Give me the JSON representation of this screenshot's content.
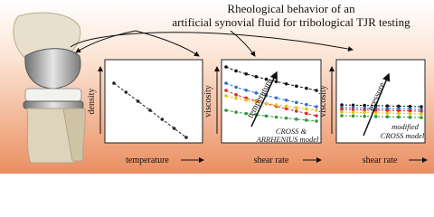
{
  "title_lines": [
    "Rheological behavior of an",
    "artificial synovial fluid for tribological TJR testing"
  ],
  "panels": [
    {
      "x_label": "temperature",
      "y_label": "density"
    },
    {
      "x_label": "shear rate",
      "y_label": "viscosity",
      "arrow_label": "temperature",
      "model_lines": [
        "CROSS &",
        "ARRHENIUS model"
      ]
    },
    {
      "x_label": "shear rate",
      "y_label": "viscosity",
      "arrow_label": "pressure",
      "model_lines": [
        "modified",
        "CROSS model"
      ]
    }
  ]
}
